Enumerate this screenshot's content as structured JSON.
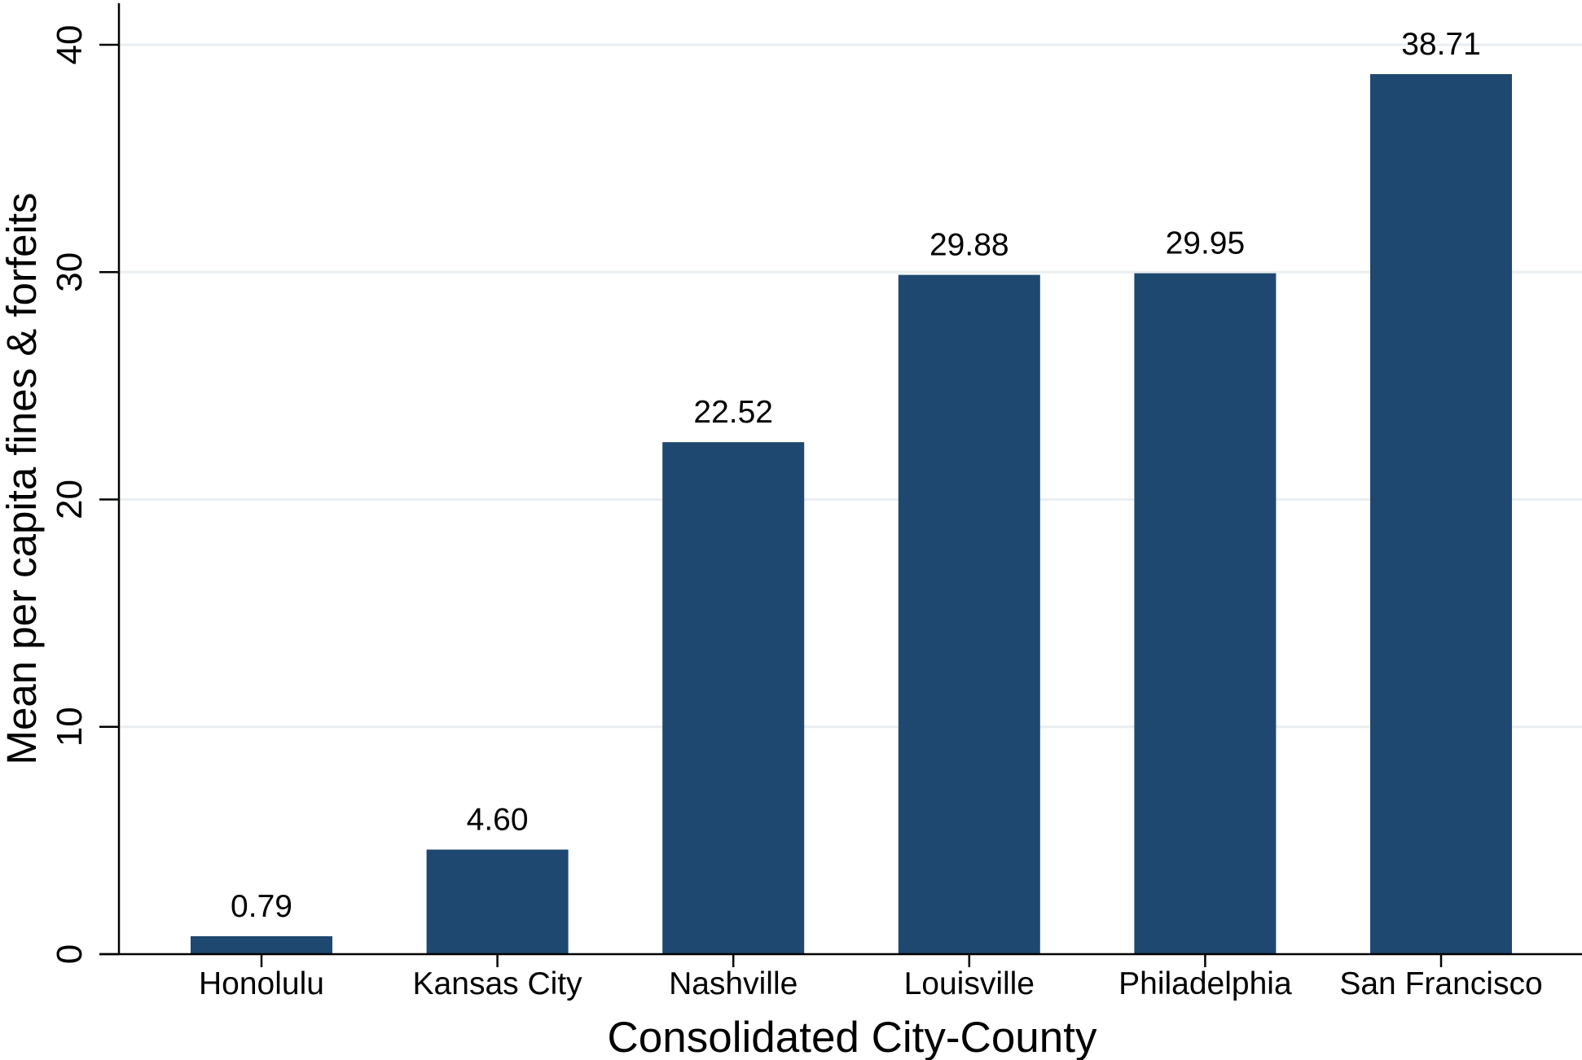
{
  "chart_data": {
    "type": "bar",
    "title": "",
    "xlabel": "Consolidated City-County",
    "ylabel": "Mean per capita fines & forfeits",
    "categories": [
      "Honolulu",
      "Kansas City",
      "Nashville",
      "Louisville",
      "Philadelphia",
      "San Francisco"
    ],
    "values": [
      0.79,
      4.6,
      22.52,
      29.88,
      29.95,
      38.71
    ],
    "value_labels": [
      "0.79",
      "4.60",
      "22.52",
      "29.88",
      "29.95",
      "38.71"
    ],
    "ylim": [
      0,
      40
    ],
    "yticks": [
      0,
      10,
      20,
      30,
      40
    ],
    "ytick_labels": [
      "0",
      "10",
      "20",
      "30",
      "40"
    ],
    "grid": true,
    "legend": "none",
    "colors": {
      "bar": "#1f4870",
      "grid": "#e9eef1",
      "axis": "#000000"
    }
  }
}
